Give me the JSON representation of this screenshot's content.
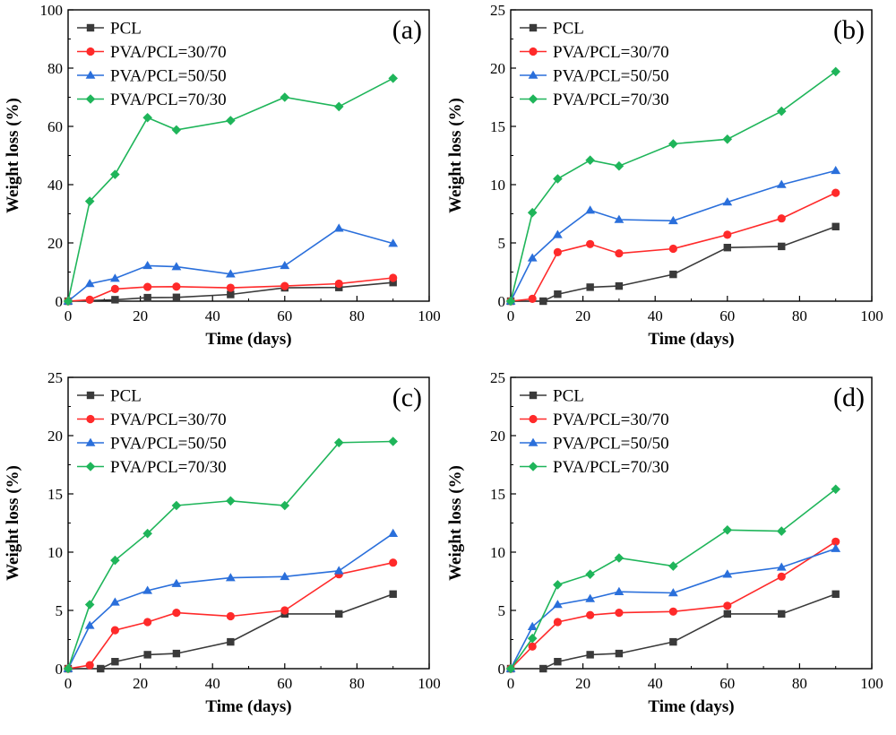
{
  "chart_data": [
    {
      "type": "line",
      "panel_label": "(a)",
      "xlabel": "Time (days)",
      "ylabel": "Weight loss (%)",
      "xlim": [
        0,
        100
      ],
      "ylim": [
        0,
        100
      ],
      "xticks": [
        0,
        20,
        40,
        60,
        80,
        100
      ],
      "yticks": [
        0,
        20,
        40,
        60,
        80,
        100
      ],
      "legend_position": "top-left",
      "series": [
        {
          "name": "PCL",
          "color": "#3a3a3a",
          "marker": "square",
          "x": [
            0,
            13,
            22,
            30,
            45,
            60,
            75,
            90
          ],
          "y": [
            0,
            0.5,
            1.2,
            1.3,
            2.3,
            4.6,
            4.7,
            6.4
          ]
        },
        {
          "name": "PVA/PCL=30/70",
          "color": "#ff2a2a",
          "marker": "circle",
          "x": [
            0,
            6,
            13,
            22,
            30,
            45,
            60,
            75,
            90
          ],
          "y": [
            0,
            0.5,
            4.2,
            4.9,
            5.0,
            4.6,
            5.2,
            6.0,
            8.0
          ]
        },
        {
          "name": "PVA/PCL=50/50",
          "color": "#2a6fdb",
          "marker": "triangle",
          "x": [
            0,
            6,
            13,
            22,
            30,
            45,
            60,
            75,
            90
          ],
          "y": [
            0,
            6.0,
            7.8,
            12.2,
            11.8,
            9.3,
            12.2,
            25.0,
            19.8
          ]
        },
        {
          "name": "PVA/PCL=70/30",
          "color": "#1fb55a",
          "marker": "diamond",
          "x": [
            0,
            6,
            13,
            22,
            30,
            45,
            60,
            75,
            90
          ],
          "y": [
            0,
            34.3,
            43.5,
            63.0,
            58.8,
            62.0,
            70.0,
            66.8,
            76.5
          ]
        }
      ]
    },
    {
      "type": "line",
      "panel_label": "(b)",
      "xlabel": "Time (days)",
      "ylabel": "Weight loss (%)",
      "xlim": [
        0,
        100
      ],
      "ylim": [
        0,
        25
      ],
      "xticks": [
        0,
        20,
        40,
        60,
        80,
        100
      ],
      "yticks": [
        0,
        5,
        10,
        15,
        20,
        25
      ],
      "legend_position": "top-left",
      "series": [
        {
          "name": "PCL",
          "color": "#3a3a3a",
          "marker": "square",
          "x": [
            0,
            9,
            13,
            22,
            30,
            45,
            60,
            75,
            90
          ],
          "y": [
            0,
            0,
            0.6,
            1.2,
            1.3,
            2.3,
            4.6,
            4.7,
            6.4
          ]
        },
        {
          "name": "PVA/PCL=30/70",
          "color": "#ff2a2a",
          "marker": "circle",
          "x": [
            0,
            6,
            13,
            22,
            30,
            45,
            60,
            75,
            90
          ],
          "y": [
            0,
            0.2,
            4.2,
            4.9,
            4.1,
            4.5,
            5.7,
            7.1,
            9.3
          ]
        },
        {
          "name": "PVA/PCL=50/50",
          "color": "#2a6fdb",
          "marker": "triangle",
          "x": [
            0,
            6,
            13,
            22,
            30,
            45,
            60,
            75,
            90
          ],
          "y": [
            0,
            3.7,
            5.7,
            7.8,
            7.0,
            6.9,
            8.5,
            10.0,
            11.2
          ]
        },
        {
          "name": "PVA/PCL=70/30",
          "color": "#1fb55a",
          "marker": "diamond",
          "x": [
            0,
            6,
            13,
            22,
            30,
            45,
            60,
            75,
            90
          ],
          "y": [
            0,
            7.6,
            10.5,
            12.1,
            11.6,
            13.5,
            13.9,
            16.3,
            19.7
          ]
        }
      ]
    },
    {
      "type": "line",
      "panel_label": "(c)",
      "xlabel": "Time (days)",
      "ylabel": "Weight loss (%)",
      "xlim": [
        0,
        100
      ],
      "ylim": [
        0,
        25
      ],
      "xticks": [
        0,
        20,
        40,
        60,
        80,
        100
      ],
      "yticks": [
        0,
        5,
        10,
        15,
        20,
        25
      ],
      "legend_position": "top-left",
      "series": [
        {
          "name": "PCL",
          "color": "#3a3a3a",
          "marker": "square",
          "x": [
            0,
            9,
            13,
            22,
            30,
            45,
            60,
            75,
            90
          ],
          "y": [
            0,
            0,
            0.6,
            1.2,
            1.3,
            2.3,
            4.7,
            4.7,
            6.4
          ]
        },
        {
          "name": "PVA/PCL=30/70",
          "color": "#ff2a2a",
          "marker": "circle",
          "x": [
            0,
            6,
            13,
            22,
            30,
            45,
            60,
            75,
            90
          ],
          "y": [
            0,
            0.3,
            3.3,
            4.0,
            4.8,
            4.5,
            5.0,
            8.1,
            9.1
          ]
        },
        {
          "name": "PVA/PCL=50/50",
          "color": "#2a6fdb",
          "marker": "triangle",
          "x": [
            0,
            6,
            13,
            22,
            30,
            45,
            60,
            75,
            90
          ],
          "y": [
            0,
            3.7,
            5.7,
            6.7,
            7.3,
            7.8,
            7.9,
            8.4,
            11.6
          ]
        },
        {
          "name": "PVA/PCL=70/30",
          "color": "#1fb55a",
          "marker": "diamond",
          "x": [
            0,
            6,
            13,
            22,
            30,
            45,
            60,
            75,
            90
          ],
          "y": [
            0,
            5.5,
            9.3,
            11.6,
            14.0,
            14.4,
            14.0,
            19.4,
            19.5
          ]
        }
      ]
    },
    {
      "type": "line",
      "panel_label": "(d)",
      "xlabel": "Time (days)",
      "ylabel": "Weight loss (%)",
      "xlim": [
        0,
        100
      ],
      "ylim": [
        0,
        25
      ],
      "xticks": [
        0,
        20,
        40,
        60,
        80,
        100
      ],
      "yticks": [
        0,
        5,
        10,
        15,
        20,
        25
      ],
      "legend_position": "top-left",
      "series": [
        {
          "name": "PCL",
          "color": "#3a3a3a",
          "marker": "square",
          "x": [
            0,
            9,
            13,
            22,
            30,
            45,
            60,
            75,
            90
          ],
          "y": [
            0,
            0,
            0.6,
            1.2,
            1.3,
            2.3,
            4.7,
            4.7,
            6.4
          ]
        },
        {
          "name": "PVA/PCL=30/70",
          "color": "#ff2a2a",
          "marker": "circle",
          "x": [
            0,
            6,
            13,
            22,
            30,
            45,
            60,
            75,
            90
          ],
          "y": [
            0,
            1.9,
            4.0,
            4.6,
            4.8,
            4.9,
            5.4,
            7.9,
            10.9
          ]
        },
        {
          "name": "PVA/PCL=50/50",
          "color": "#2a6fdb",
          "marker": "triangle",
          "x": [
            0,
            6,
            13,
            22,
            30,
            45,
            60,
            75,
            90
          ],
          "y": [
            0,
            3.6,
            5.5,
            6.0,
            6.6,
            6.5,
            8.1,
            8.7,
            10.3
          ]
        },
        {
          "name": "PVA/PCL=70/30",
          "color": "#1fb55a",
          "marker": "diamond",
          "x": [
            0,
            6,
            13,
            22,
            30,
            45,
            60,
            75,
            90
          ],
          "y": [
            0,
            2.6,
            7.2,
            8.1,
            9.5,
            8.8,
            11.9,
            11.8,
            15.4
          ]
        }
      ]
    }
  ]
}
